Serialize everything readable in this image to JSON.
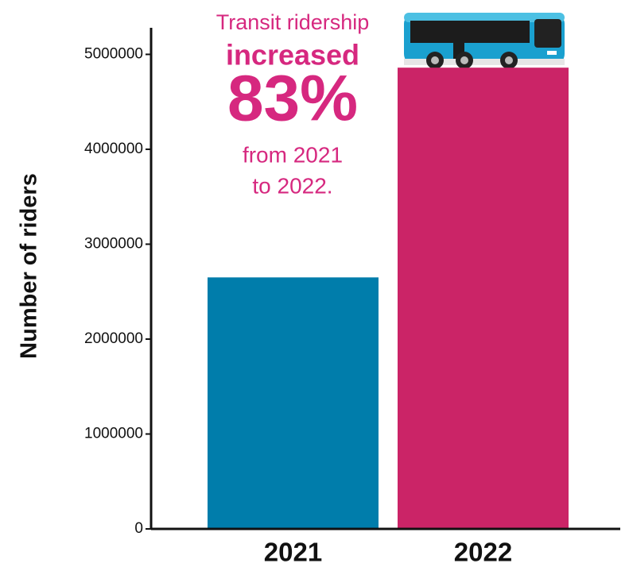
{
  "chart_data": {
    "type": "bar",
    "y_label": "Number of riders",
    "categories": [
      "2021",
      "2022"
    ],
    "values": [
      2650000,
      4860000
    ],
    "colors": [
      "#007dab",
      "#cb2467"
    ],
    "ylim": [
      0,
      5280000
    ],
    "yticks": [
      0,
      1000000,
      2000000,
      3000000,
      4000000,
      5000000
    ],
    "annotation": [
      "Transit ridership",
      "increased",
      "83%",
      "from 2021",
      "to 2022."
    ],
    "annotation_color": "#d6287f",
    "grid": false
  }
}
